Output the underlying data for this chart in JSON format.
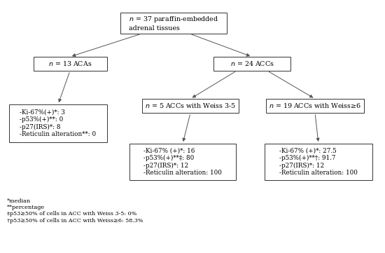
{
  "title_node": "$n$ = 37 paraffin-embedded\nadrenal tissues",
  "left_node": "$n$ = 13 ACAs",
  "right_node": "$n$ = 24 ACCs",
  "left_leaf": "-Ki-67%(+)*: 3\n-p53%(+)**: 0\n-p27(IRS)*: 8\n-Reticulin alteration**: 0",
  "mid_node": "$n$ = 5 ACCs with Weiss 3-5",
  "right_leaf_node": "$n$ = 19 ACCs with Weiss≥6",
  "mid_leaf": "-Ki-67% (+)*: 16\n-p53%(+)**‡: 80\n-p27(IRS)*: 12\n-Reticulin alteration: 100",
  "right_leaf": "-Ki-67% (+)*: 27.5\n-p53%(+)**†: 91.7\n-p27(IRS)*: 12\n-Reticulin alteration: 100",
  "footnote": "*median\n**percentage\n‡p53≥50% of cells in ACC with Weiss 3-5: 0%\n†p53≥50% of cells in ACC with Weiss≥6: 58.3%",
  "bg_color": "#ffffff",
  "box_edge_color": "#333333",
  "text_color": "#000000",
  "arrow_color": "#555555"
}
